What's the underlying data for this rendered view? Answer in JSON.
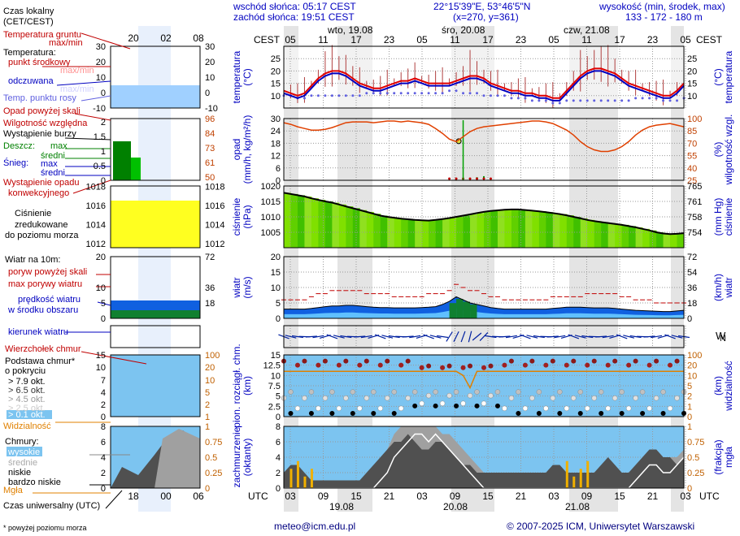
{
  "header": {
    "sunrise": "wschód słońca: 05:17 CEST",
    "sunset": "zachód słońca: 19:51 CEST",
    "coords": "22°15'39\"E, 53°46'5\"N",
    "grid": "(x=270, y=361)",
    "elev_title": "wysokość (min, środek, max)",
    "elev_values": "133 - 172 - 180 m"
  },
  "footer": {
    "email": "meteo@icm.edu.pl",
    "copyright": "© 2007-2025 ICM, Uniwersytet Warszawski",
    "note": "* powyżej poziomu morza",
    "utc_label": "Czas uniwersalny (UTC)"
  },
  "legend": {
    "local_time": "Czas lokalny",
    "local_time2": "(CET/CEST)",
    "soil": "Temperatura gruntu",
    "soil2": "max/min",
    "temp": "Temperatura:",
    "temp_mid": "punkt środkowy",
    "temp_maxmin": "max/min",
    "felt": "odczuwana",
    "felt_maxmin": "max/min",
    "dew": "Temp. punktu rosy",
    "precip_over": "Opad powyżej skali",
    "humidity": "Wilgotność względna",
    "storm": "Wystąpienie burzy",
    "rain": "Deszcz:",
    "rain_max": "max",
    "rain_mid": "średni",
    "snow": "Śnieg:",
    "snow_max": "max",
    "snow_mid": "średni",
    "convective": "Wystąpienie opadu",
    "convective2": "konwekcyjnego",
    "pressure": "Ciśnienie",
    "pressure2": "zredukowane",
    "pressure3": "do poziomu morza",
    "wind10": "Wiatr na 10m:",
    "gust_over": "poryw powyżej skali",
    "gust_max": "max porywy wiatru",
    "wind_speed": "prędkość wiatru",
    "wind_speed2": "w środku obszaru",
    "wind_dir": "kierunek wiatru",
    "cloud_top": "Wierzchołek chmur",
    "cloud_base": "Podstawa chmur*",
    "cloud_base2": "o pokryciu",
    "okt79": "> 7.9 okt.",
    "okt65": "> 6.5 okt.",
    "okt45": "> 4.5 okt.",
    "okt25": "> 2.5 okt.",
    "okt01": "> 0.1 okt.",
    "visibility": "Widzialność",
    "clouds": "Chmury:",
    "cl_high": "wysokie",
    "cl_mid": "średnie",
    "cl_low": "niskie",
    "cl_vlow": "bardzo niskie",
    "fog": "Mgła"
  },
  "units": {
    "temp_l": "temperatura",
    "temp_l2": "(°C)",
    "temp_r": "temperatura",
    "temp_r2": "(°C)",
    "precip_l": "opad",
    "precip_l2": "(mm/h, kg/m²/h)",
    "hum_r": "wilgotność wzgl.",
    "hum_r2": "(%)",
    "pres_l": "ciśnienie",
    "pres_l2": "(hPa)",
    "pres_r": "ciśnienie",
    "pres_r2": "(mm Hg)",
    "wind_l": "wiatr",
    "wind_l2": "(m/s)",
    "wind_r": "wiatr",
    "wind_r2": "(km/h)",
    "cloud_l": "pion. rozciągł. chm.",
    "cloud_l2": "(km)",
    "vis_r": "widzialność",
    "vis_r2": "(km)",
    "cov_l": "zachmurzenie",
    "cov_l2": "(oktanty)",
    "fog_r": "mgła",
    "fog_r2": "(frakcja)",
    "cest": "CEST",
    "utc": "UTC"
  },
  "dates": {
    "top": [
      "wto, 19.08",
      "śro, 20.08",
      "czw, 21.08"
    ],
    "bottom": [
      "19.08",
      "20.08",
      "21.08"
    ]
  },
  "chart_data": {
    "type": "line",
    "time_axis": {
      "local_hours": [
        "05",
        "11",
        "17",
        "23",
        "05",
        "11",
        "17",
        "23",
        "05",
        "11",
        "17",
        "23",
        "05"
      ],
      "utc_hours": [
        "03",
        "09",
        "15",
        "21",
        "03",
        "09",
        "15",
        "21",
        "03",
        "09",
        "15",
        "21",
        "03"
      ],
      "mini_local": [
        "20",
        "02",
        "08"
      ],
      "mini_utc": [
        "18",
        "00",
        "06"
      ]
    },
    "panels": [
      {
        "name": "temperature",
        "ylim": [
          5,
          30
        ],
        "yticks": [
          10,
          15,
          20,
          25
        ],
        "mini_yticks": [
          -10,
          -5,
          0,
          5,
          10,
          15,
          20,
          25,
          30
        ],
        "series": [
          {
            "name": "punkt środkowy",
            "color": "#e00000",
            "values": [
              12,
              11,
              10,
              11,
              14,
              17,
              19,
              20,
              20,
              19,
              17,
              15,
              14,
              13,
              13,
              14,
              15,
              16,
              16,
              17,
              16,
              15,
              15,
              15,
              15,
              16,
              17,
              18,
              18,
              17,
              15,
              14,
              13,
              12,
              12,
              11,
              11,
              10,
              10,
              9,
              9,
              12,
              15,
              18,
              20,
              21,
              21,
              20,
              19,
              17,
              15,
              14,
              13,
              12,
              11,
              10,
              10,
              12,
              15
            ]
          },
          {
            "name": "odczuwana",
            "color": "#0000c0",
            "values": [
              11,
              10,
              9,
              10,
              13,
              16,
              18,
              19,
              19,
              18,
              16,
              14,
              13,
              12,
              12,
              13,
              14,
              15,
              15,
              16,
              15,
              14,
              14,
              14,
              14,
              15,
              16,
              17,
              17,
              16,
              14,
              13,
              12,
              11,
              11,
              10,
              10,
              9,
              9,
              8,
              8,
              11,
              14,
              17,
              19,
              20,
              20,
              19,
              18,
              16,
              14,
              13,
              12,
              11,
              10,
              9,
              9,
              11,
              14
            ]
          },
          {
            "name": "Temp. punktu rosy",
            "color": "#6060e0",
            "values": [
              10,
              10,
              9,
              9,
              10,
              10,
              10,
              10,
              10,
              10,
              10,
              10,
              11,
              11,
              11,
              11,
              11,
              11,
              11,
              11,
              11,
              11,
              11,
              11,
              12,
              12,
              11,
              11,
              11,
              10,
              10,
              10,
              10,
              9,
              9,
              9,
              8,
              8,
              8,
              7,
              7,
              8,
              8,
              8,
              8,
              8,
              8,
              8,
              8,
              8,
              8,
              9,
              9,
              9,
              9,
              8,
              8,
              8,
              9
            ]
          }
        ]
      },
      {
        "name": "precipitation",
        "ylim": [
          0,
          30
        ],
        "yticks": [
          0,
          6,
          12,
          18,
          24,
          30
        ],
        "right_yticks": [
          25,
          40,
          55,
          70,
          85,
          100
        ],
        "series": [
          {
            "name": "Wilgotność względna",
            "color": "#e04000",
            "values": [
              95,
              93,
              90,
              88,
              86,
              86,
              87,
              89,
              92,
              95,
              96,
              96,
              96,
              95,
              96,
              97,
              97,
              96,
              97,
              96,
              95,
              93,
              88,
              82,
              75,
              72,
              78,
              84,
              88,
              90,
              91,
              92,
              93,
              94,
              95,
              96,
              97,
              97,
              96,
              94,
              90,
              86,
              80,
              72,
              66,
              62,
              60,
              60,
              62,
              66,
              72,
              80,
              86,
              90,
              92,
              93,
              94,
              92,
              90
            ]
          },
          {
            "name": "Deszcz",
            "color": "#008000",
            "values": [
              0,
              0,
              0,
              0,
              0,
              0,
              0,
              0,
              0,
              0,
              0,
              0,
              0,
              0,
              0,
              0,
              0,
              0,
              0,
              0,
              0,
              0,
              0,
              0,
              0.3,
              0.5,
              0.6,
              0.8,
              1.5,
              2.0,
              0.5,
              0,
              0,
              0,
              0,
              0,
              0,
              0,
              0,
              0,
              0,
              0,
              0,
              0,
              0,
              0,
              0,
              0,
              0,
              0,
              0,
              0,
              0,
              0,
              0,
              0,
              0,
              0,
              0
            ]
          }
        ]
      },
      {
        "name": "pressure",
        "ylim": [
          1000,
          1020
        ],
        "yticks": [
          1005,
          1010,
          1015,
          1020
        ],
        "right_yticks": [
          754,
          758,
          761,
          765
        ],
        "mini_yticks": [
          1012,
          1014,
          1016,
          1018
        ],
        "series": [
          {
            "name": "Ciśnienie",
            "color": "#000000",
            "values": [
              1017.8,
              1017.4,
              1017.0,
              1016.6,
              1016.0,
              1015.5,
              1015.0,
              1014.6,
              1014.0,
              1013.4,
              1012.8,
              1012.2,
              1011.6,
              1011.0,
              1010.4,
              1010.0,
              1009.7,
              1009.4,
              1009.2,
              1009.0,
              1008.9,
              1008.8,
              1009.0,
              1009.3,
              1009.6,
              1010.0,
              1010.4,
              1010.8,
              1011.2,
              1011.6,
              1011.9,
              1012.1,
              1012.3,
              1012.4,
              1012.4,
              1012.2,
              1012.0,
              1011.8,
              1011.5,
              1011.2,
              1010.9,
              1010.5,
              1010.0,
              1009.5,
              1009.0,
              1008.6,
              1008.3,
              1008.0,
              1007.7,
              1007.4,
              1007.0,
              1006.6,
              1006.1,
              1005.6,
              1005.0,
              1004.6,
              1004.4,
              1004.5,
              1004.7
            ]
          }
        ]
      },
      {
        "name": "wind",
        "ylim": [
          0,
          20
        ],
        "yticks": [
          0,
          5,
          10,
          15,
          20
        ],
        "right_yticks": [
          0,
          18,
          36,
          54,
          72
        ],
        "series": [
          {
            "name": "max porywy wiatru",
            "color": "#c00000",
            "values": [
              6,
              6,
              6,
              6,
              7,
              8,
              8,
              9,
              9,
              9,
              9,
              9,
              8,
              8,
              8,
              8,
              7,
              7,
              7,
              7,
              7,
              8,
              8,
              8,
              9,
              11,
              10,
              9,
              9,
              8,
              7,
              7,
              6,
              6,
              6,
              6,
              6,
              6,
              6,
              7,
              7,
              7,
              7,
              7,
              8,
              8,
              8,
              8,
              8,
              7,
              7,
              6,
              6,
              6,
              5,
              5,
              5,
              5,
              5
            ]
          },
          {
            "name": "prędkość wiatru",
            "color": "#0030ff",
            "values": [
              3,
              3,
              3,
              3,
              3.2,
              3.5,
              3.8,
              4,
              4,
              4.2,
              4.2,
              4,
              3.8,
              3.6,
              3.5,
              3.5,
              3.4,
              3.4,
              3.4,
              3.4,
              3.5,
              3.6,
              3.8,
              4.5,
              5.5,
              7,
              6,
              5,
              4.5,
              4,
              3.5,
              3.2,
              3,
              3,
              3,
              3,
              3,
              3,
              3,
              3.2,
              3.4,
              3.6,
              3.6,
              3.6,
              3.5,
              3.4,
              3.4,
              3.4,
              3.2,
              3,
              2.8,
              2.6,
              2.5,
              2.4,
              2.3,
              2.2,
              2.2,
              2.4,
              2.6
            ]
          }
        ]
      },
      {
        "name": "cloud_base",
        "ylim": [
          0,
          15
        ],
        "yticks": [
          0,
          2.5,
          5,
          7.5,
          10,
          12.5,
          15
        ],
        "right_yticks": [
          0,
          1,
          2,
          5,
          10,
          20,
          100
        ],
        "mini_yticks": [
          0,
          2,
          4,
          7,
          10,
          15
        ],
        "series": [
          {
            "name": "Widzialność",
            "color": "#e08000",
            "values": [
              11,
              11,
              11,
              11,
              11,
              11,
              11,
              11,
              11,
              11,
              11,
              11,
              11,
              11,
              11,
              11,
              11,
              11,
              11,
              11,
              11,
              11,
              11,
              11,
              11,
              11,
              10,
              7,
              11,
              11,
              11,
              11,
              11,
              11,
              11,
              11,
              11,
              11,
              11,
              11,
              11,
              11,
              11,
              11,
              11,
              11,
              11,
              11,
              11,
              11,
              11,
              11,
              11,
              11,
              11,
              11,
              11,
              11,
              11
            ]
          }
        ]
      },
      {
        "name": "cloud_cover",
        "ylim": [
          0,
          8
        ],
        "yticks": [
          0,
          2,
          4,
          6,
          8
        ],
        "right_yticks": [
          0,
          0.25,
          0.5,
          0.75,
          1
        ],
        "series": [
          {
            "name": "wysokie",
            "color": "#ffffff",
            "values": [
              0,
              0,
              0,
              0,
              0,
              0,
              0,
              0,
              0,
              0,
              0,
              0,
              0,
              0,
              1,
              2,
              4,
              5,
              6,
              7,
              7,
              6,
              7,
              6,
              5,
              4,
              3,
              2,
              1,
              0,
              0,
              0,
              0,
              0,
              0,
              0,
              0,
              0,
              0,
              0,
              0,
              0,
              0,
              0,
              0,
              0,
              0,
              0,
              0,
              0,
              0,
              1,
              2,
              3,
              3,
              2,
              2,
              3,
              4
            ]
          },
          {
            "name": "średnie",
            "color": "#a0a0a0",
            "values": [
              1,
              1,
              1,
              1,
              1,
              1,
              1,
              1,
              1,
              1,
              1,
              1,
              1,
              2,
              3,
              5,
              7,
              8,
              8,
              8,
              8,
              8,
              8,
              7,
              7,
              6,
              5,
              4,
              3,
              2,
              1,
              1,
              1,
              1,
              1,
              1,
              1,
              1,
              1,
              1,
              1,
              1,
              1,
              1,
              1,
              1,
              1,
              1,
              1,
              1,
              2,
              3,
              4,
              5,
              5,
              4,
              4,
              4,
              5
            ]
          },
          {
            "name": "niskie",
            "color": "#505050",
            "values": [
              2,
              3,
              3,
              2,
              1,
              1,
              1,
              1,
              1,
              1,
              1,
              1,
              2,
              3,
              4,
              5,
              6,
              6,
              7,
              6,
              5,
              5,
              6,
              6,
              5,
              4,
              3,
              3,
              2,
              2,
              2,
              2,
              2,
              2,
              2,
              2,
              2,
              2,
              2,
              3,
              3,
              2,
              2,
              2,
              2,
              2,
              3,
              4,
              3,
              2,
              2,
              3,
              4,
              5,
              5,
              4,
              4,
              3,
              4
            ]
          }
        ]
      }
    ]
  }
}
